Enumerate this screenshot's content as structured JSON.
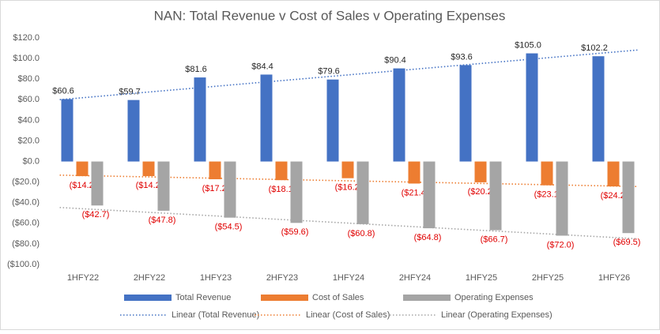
{
  "chart_data": {
    "type": "bar",
    "title": "NAN: Total Revenue v Cost of Sales v Operating Expenses",
    "categories": [
      "1HFY22",
      "2HFY22",
      "1HFY23",
      "2HFY23",
      "1HFY24",
      "2HFY24",
      "1HFY25",
      "2HFY25",
      "1HFY26"
    ],
    "series": [
      {
        "name": "Total Revenue",
        "color": "#4472c4",
        "values": [
          60.6,
          59.7,
          81.6,
          84.4,
          79.6,
          90.4,
          93.6,
          105.0,
          102.2
        ],
        "value_labels": [
          "$60.6",
          "$59.7",
          "$81.6",
          "$84.4",
          "$79.6",
          "$90.4",
          "$93.6",
          "$105.0",
          "$102.2"
        ],
        "label_color": "#262626",
        "trendline": {
          "name": "Linear (Total Revenue)",
          "style": "dotted"
        }
      },
      {
        "name": "Cost of Sales",
        "color": "#ed7d31",
        "values": [
          -14.2,
          -14.2,
          -17.2,
          -18.1,
          -16.2,
          -21.4,
          -20.2,
          -23.1,
          -24.2
        ],
        "value_labels": [
          "($14.2)",
          "($14.2)",
          "($17.2)",
          "($18.1)",
          "($16.2)",
          "($21.4)",
          "($20.2)",
          "($23.1)",
          "($24.2)"
        ],
        "label_color": "#e00000",
        "trendline": {
          "name": "Linear (Cost of Sales)",
          "style": "dotted"
        }
      },
      {
        "name": "Operating Expenses",
        "color": "#a5a5a5",
        "values": [
          -42.7,
          -47.8,
          -54.5,
          -59.6,
          -60.8,
          -64.8,
          -66.7,
          -72.0,
          -69.5
        ],
        "value_labels": [
          "($42.7)",
          "($47.8)",
          "($54.5)",
          "($59.6)",
          "($60.8)",
          "($64.8)",
          "($66.7)",
          "($72.0)",
          "($69.5)"
        ],
        "label_color": "#e00000",
        "trendline": {
          "name": "Linear (Operating Expenses)",
          "style": "dotted"
        }
      }
    ],
    "ylim": [
      -100,
      120
    ],
    "yticks": [
      {
        "value": -100,
        "label": "($100.0)"
      },
      {
        "value": -80,
        "label": "($80.0)"
      },
      {
        "value": -60,
        "label": "($60.0)"
      },
      {
        "value": -40,
        "label": "($40.0)"
      },
      {
        "value": -20,
        "label": "($20.0)"
      },
      {
        "value": 0,
        "label": "$0.0"
      },
      {
        "value": 20,
        "label": "$20.0"
      },
      {
        "value": 40,
        "label": "$40.0"
      },
      {
        "value": 60,
        "label": "$60.0"
      },
      {
        "value": 80,
        "label": "$80.0"
      },
      {
        "value": 100,
        "label": "$100.0"
      },
      {
        "value": 120,
        "label": "$120.0"
      }
    ],
    "grid": false,
    "legend": "bottom"
  }
}
